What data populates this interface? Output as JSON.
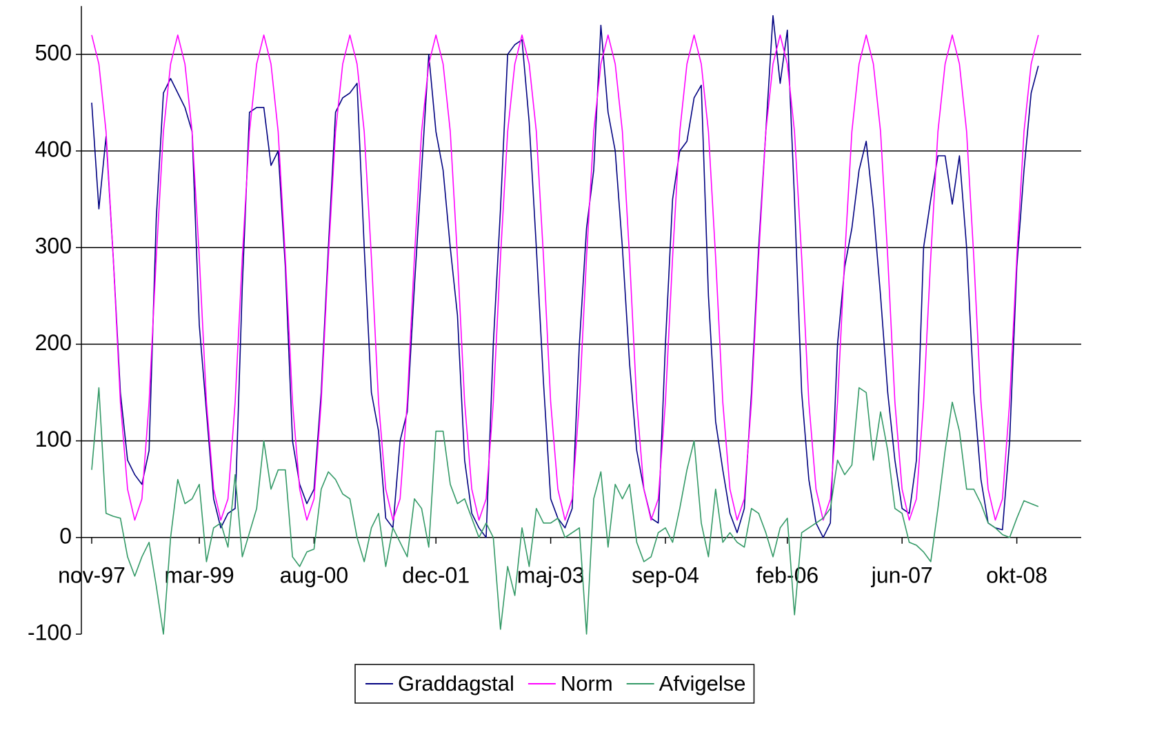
{
  "chart_data": {
    "type": "line",
    "categories": [
      "nov-97",
      null,
      null,
      null,
      null,
      null,
      null,
      null,
      null,
      null,
      null,
      null,
      null,
      null,
      null,
      "mar-99",
      null,
      null,
      null,
      null,
      null,
      null,
      null,
      null,
      null,
      null,
      null,
      null,
      null,
      null,
      null,
      "aug-00",
      null,
      null,
      null,
      null,
      null,
      null,
      null,
      null,
      null,
      null,
      null,
      null,
      null,
      null,
      null,
      null,
      "dec-01",
      null,
      null,
      null,
      null,
      null,
      null,
      null,
      null,
      null,
      null,
      null,
      null,
      null,
      null,
      null,
      "maj-03",
      null,
      null,
      null,
      null,
      null,
      null,
      null,
      null,
      null,
      null,
      null,
      null,
      null,
      null,
      null,
      "sep-04",
      null,
      null,
      null,
      null,
      null,
      null,
      null,
      null,
      null,
      null,
      null,
      null,
      null,
      null,
      null,
      null,
      "feb-06",
      null,
      null,
      null,
      null,
      null,
      null,
      null,
      null,
      null,
      null,
      null,
      null,
      null,
      null,
      null,
      "jun-07",
      null,
      null,
      null,
      null,
      null,
      null,
      null,
      null,
      null,
      null,
      null,
      null,
      null,
      null,
      null,
      "okt-08",
      null,
      null,
      null
    ],
    "series": [
      {
        "name": "Graddagstal",
        "color": "#000080",
        "values": [
          450,
          340,
          415,
          290,
          150,
          80,
          65,
          55,
          90,
          330,
          460,
          475,
          460,
          445,
          420,
          220,
          130,
          40,
          10,
          25,
          30,
          260,
          440,
          445,
          445,
          385,
          400,
          280,
          100,
          55,
          35,
          50,
          150,
          300,
          440,
          455,
          460,
          470,
          300,
          150,
          110,
          20,
          10,
          100,
          130,
          260,
          380,
          500,
          420,
          380,
          300,
          230,
          80,
          25,
          10,
          0,
          200,
          340,
          500,
          510,
          515,
          430,
          300,
          160,
          40,
          20,
          10,
          30,
          200,
          320,
          380,
          530,
          440,
          400,
          300,
          180,
          90,
          50,
          20,
          15,
          200,
          350,
          400,
          410,
          455,
          468,
          250,
          120,
          70,
          25,
          5,
          30,
          150,
          300,
          420,
          540,
          470,
          525,
          350,
          150,
          60,
          15,
          0,
          15,
          200,
          280,
          320,
          380,
          410,
          340,
          250,
          150,
          80,
          30,
          25,
          80,
          300,
          350,
          395,
          395,
          345,
          395,
          300,
          150,
          60,
          15,
          10,
          8,
          100,
          280,
          380,
          460,
          488
        ]
      },
      {
        "name": "Norm",
        "color": "#ff00ff",
        "values": [
          520,
          490,
          420,
          290,
          140,
          50,
          18,
          40,
          140,
          290,
          420,
          490,
          520,
          490,
          420,
          290,
          140,
          50,
          18,
          40,
          140,
          290,
          420,
          490,
          520,
          490,
          420,
          290,
          140,
          50,
          18,
          40,
          140,
          290,
          420,
          490,
          520,
          490,
          420,
          290,
          140,
          50,
          18,
          40,
          140,
          290,
          420,
          490,
          520,
          490,
          420,
          290,
          140,
          50,
          18,
          40,
          140,
          290,
          420,
          490,
          520,
          490,
          420,
          290,
          140,
          50,
          18,
          40,
          140,
          290,
          420,
          490,
          520,
          490,
          420,
          290,
          140,
          50,
          18,
          40,
          140,
          290,
          420,
          490,
          520,
          490,
          420,
          290,
          140,
          50,
          18,
          40,
          140,
          290,
          420,
          490,
          520,
          490,
          420,
          290,
          140,
          50,
          18,
          40,
          140,
          290,
          420,
          490,
          520,
          490,
          420,
          290,
          140,
          50,
          18,
          40,
          140,
          290,
          420,
          490,
          520,
          490,
          420,
          290,
          140,
          50,
          18,
          40,
          140,
          290,
          420,
          490,
          520
        ]
      },
      {
        "name": "Afvigelse",
        "color": "#339966",
        "values": [
          70,
          155,
          25,
          22,
          20,
          -20,
          -40,
          -20,
          -5,
          -50,
          -100,
          0,
          60,
          35,
          40,
          55,
          -25,
          10,
          15,
          -10,
          65,
          -20,
          5,
          30,
          100,
          50,
          70,
          70,
          -20,
          -30,
          -15,
          -12,
          50,
          68,
          60,
          45,
          40,
          0,
          -25,
          10,
          25,
          -30,
          10,
          -5,
          -20,
          40,
          30,
          -10,
          110,
          110,
          55,
          35,
          40,
          20,
          0,
          15,
          0,
          -95,
          -30,
          -60,
          10,
          -30,
          30,
          15,
          15,
          20,
          0,
          5,
          10,
          -100,
          40,
          68,
          -10,
          55,
          40,
          55,
          -5,
          -25,
          -20,
          5,
          10,
          -5,
          30,
          70,
          100,
          15,
          -20,
          50,
          -5,
          5,
          -5,
          -10,
          30,
          25,
          5,
          -20,
          10,
          20,
          -80,
          5,
          10,
          15,
          20,
          30,
          80,
          65,
          75,
          155,
          150,
          80,
          130,
          90,
          30,
          25,
          -5,
          -8,
          -15,
          -25,
          30,
          90,
          140,
          110,
          50,
          50,
          35,
          15,
          10,
          3,
          0,
          20,
          38,
          35,
          32
        ]
      }
    ],
    "ylim": [
      -100,
      550
    ],
    "yticks": [
      -100,
      0,
      100,
      200,
      300,
      400,
      500
    ],
    "grid": true,
    "legend": "bottom"
  }
}
